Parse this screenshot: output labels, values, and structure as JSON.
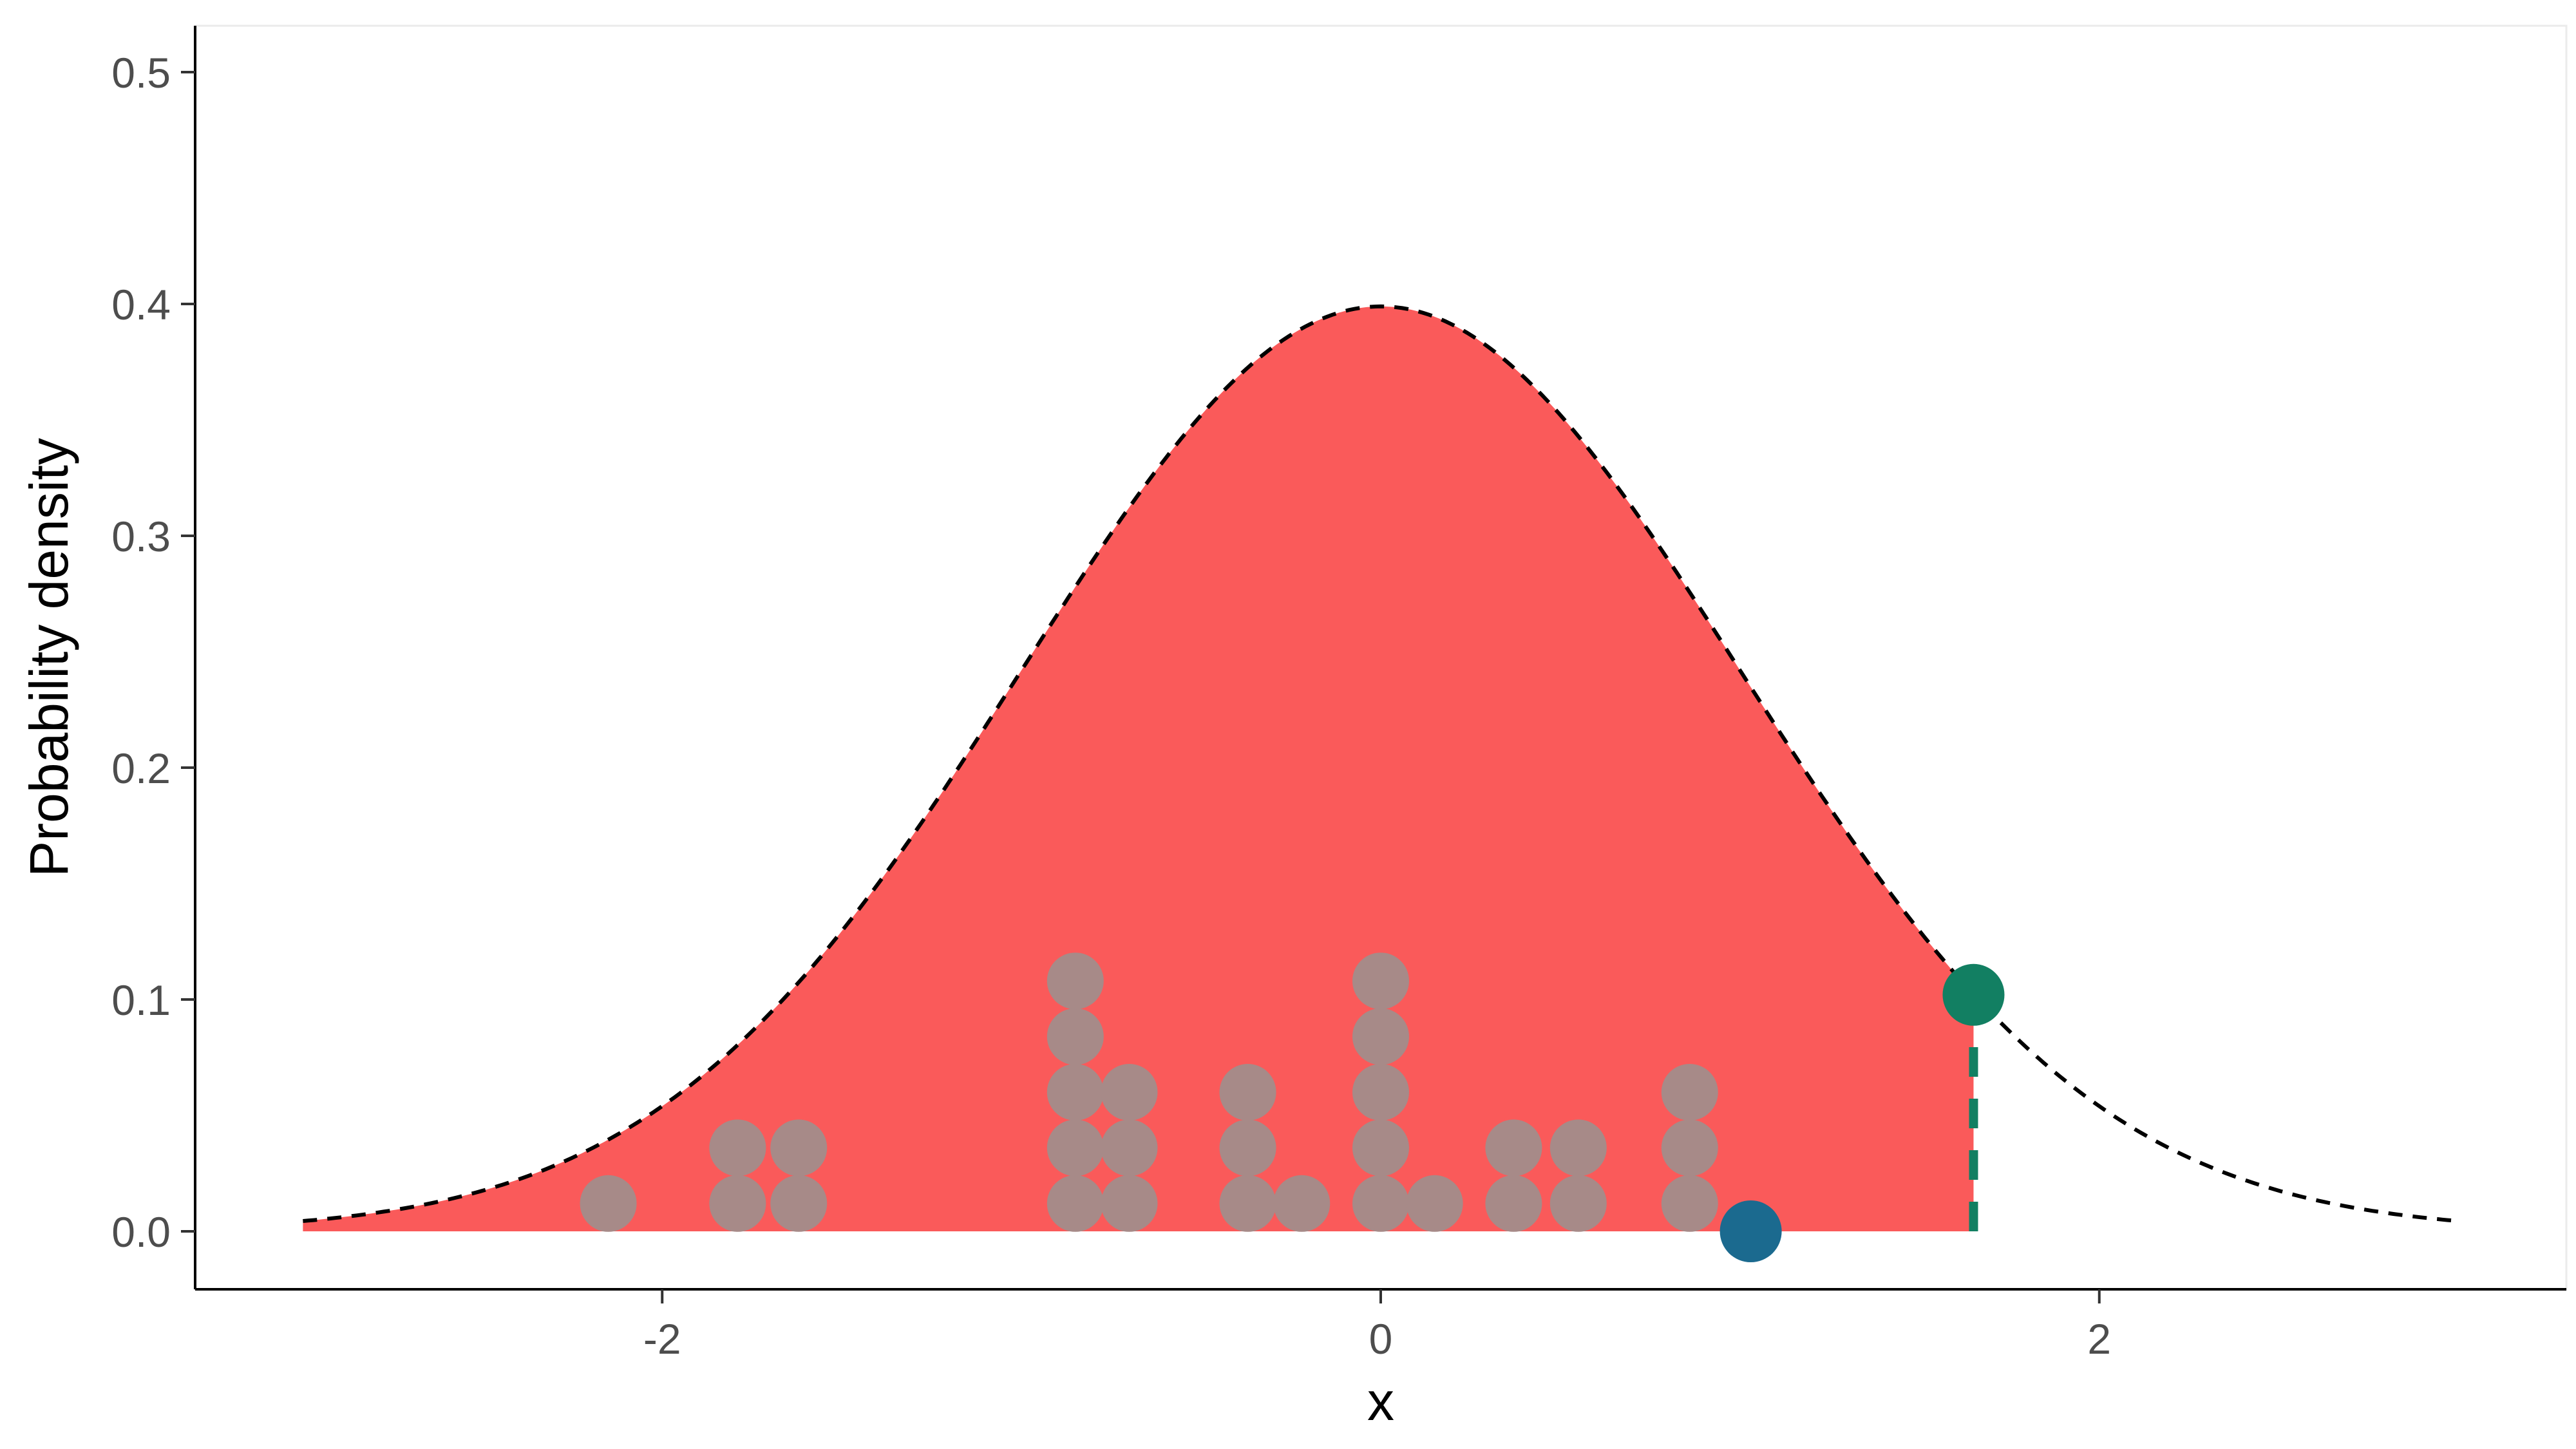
{
  "chart_data": {
    "type": "area",
    "title": "",
    "xlabel": "x",
    "ylabel": "Probability density",
    "xlim": [
      -3.3,
      3.3
    ],
    "ylim": [
      -0.025,
      0.52
    ],
    "x_ticks": [
      {
        "value": -2,
        "label": "-2"
      },
      {
        "value": 0,
        "label": "0"
      },
      {
        "value": 2,
        "label": "2"
      }
    ],
    "y_ticks": [
      {
        "value": 0.0,
        "label": "0.0"
      },
      {
        "value": 0.1,
        "label": "0.1"
      },
      {
        "value": 0.2,
        "label": "0.2"
      },
      {
        "value": 0.3,
        "label": "0.3"
      },
      {
        "value": 0.4,
        "label": "0.4"
      },
      {
        "value": 0.5,
        "label": "0.5"
      }
    ],
    "grid": false,
    "density": {
      "distribution": "standard normal",
      "x_range": [
        -3,
        3
      ],
      "line_style": "dashed",
      "line_color": "#000000"
    },
    "shaded_region": {
      "from": -3,
      "to": 1.65,
      "color": "#FA5A5A"
    },
    "cutoff": {
      "x": 1.65,
      "y": 0.102,
      "color": "#127F62",
      "line_style": "dashed"
    },
    "highlight_point": {
      "x": 1.03,
      "y": 0.0,
      "color": "#1B6A8F"
    },
    "dots": {
      "color": "#A78A88",
      "stack_step": 0.024,
      "stack_base": 0.012,
      "columns": [
        {
          "x": -2.15,
          "count": 1
        },
        {
          "x": -1.79,
          "count": 2
        },
        {
          "x": -1.62,
          "count": 2
        },
        {
          "x": -0.85,
          "count": 5
        },
        {
          "x": -0.7,
          "count": 3
        },
        {
          "x": -0.37,
          "count": 3
        },
        {
          "x": -0.22,
          "count": 1
        },
        {
          "x": 0.0,
          "count": 5
        },
        {
          "x": 0.15,
          "count": 1
        },
        {
          "x": 0.37,
          "count": 2
        },
        {
          "x": 0.55,
          "count": 2
        },
        {
          "x": 0.86,
          "count": 3
        }
      ]
    }
  }
}
